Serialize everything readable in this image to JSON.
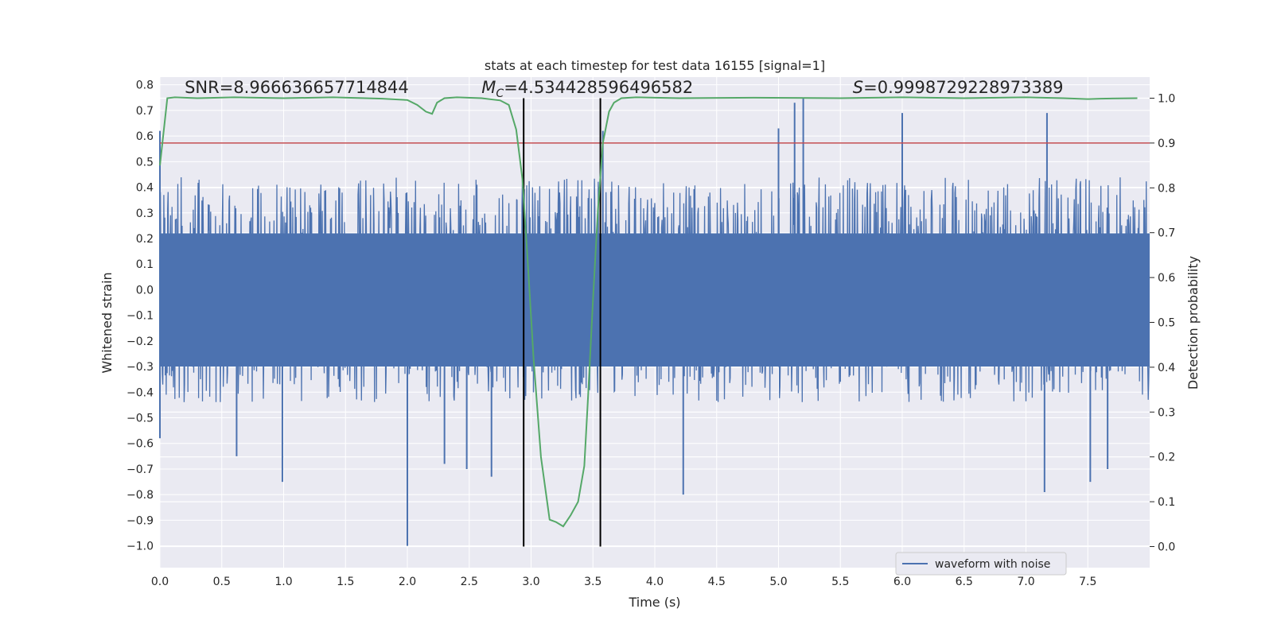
{
  "chart_data": {
    "type": "line",
    "title": "stats at each timestep for test data 16155 [signal=1]",
    "xlabel": "Time (s)",
    "ylabel": "Whitened strain",
    "y2label": "Detection probability",
    "xlim": [
      0.0,
      8.0
    ],
    "ylim": [
      -1.085,
      0.83
    ],
    "y2lim": [
      -0.047,
      1.047
    ],
    "x_ticks": [
      0.0,
      0.5,
      1.0,
      1.5,
      2.0,
      2.5,
      3.0,
      3.5,
      4.0,
      4.5,
      5.0,
      5.5,
      6.0,
      6.5,
      7.0,
      7.5
    ],
    "x_tick_labels": [
      "0.0",
      "0.5",
      "1.0",
      "1.5",
      "2.0",
      "2.5",
      "3.0",
      "3.5",
      "4.0",
      "4.5",
      "5.0",
      "5.5",
      "6.0",
      "6.5",
      "7.0",
      "7.5"
    ],
    "y_ticks": [
      0.8,
      0.7,
      0.6,
      0.5,
      0.4,
      0.3,
      0.2,
      0.1,
      0.0,
      -0.1,
      -0.2,
      -0.3,
      -0.4,
      -0.5,
      -0.6,
      -0.7,
      -0.8,
      -0.9,
      -1.0
    ],
    "y_tick_labels": [
      "0.8",
      "0.7",
      "0.6",
      "0.5",
      "0.4",
      "0.3",
      "0.2",
      "0.1",
      "0.0",
      "−0.1",
      "−0.2",
      "−0.3",
      "−0.4",
      "−0.5",
      "−0.6",
      "−0.7",
      "−0.8",
      "−0.9",
      "−1.0"
    ],
    "y2_ticks": [
      1.0,
      0.9,
      0.8,
      0.7,
      0.6,
      0.5,
      0.4,
      0.3,
      0.2,
      0.1,
      0.0
    ],
    "y2_tick_labels": [
      "1.0",
      "0.9",
      "0.8",
      "0.7",
      "0.6",
      "0.5",
      "0.4",
      "0.3",
      "0.2",
      "0.1",
      "0.0"
    ],
    "grid": true,
    "legend": {
      "placement": "lower-right",
      "entries": [
        "waveform with noise"
      ]
    },
    "colors": {
      "background": "#eaeaf2",
      "grid": "#ffffff",
      "waveform": "#4c72b0",
      "probability": "#55a868",
      "threshold": "#c44e52",
      "markers": "#000000",
      "text": "#262626"
    },
    "annotations": [
      {
        "id": "snr",
        "text": "SNR=8.966636657714844",
        "x": 0.2,
        "y2": 1.01
      },
      {
        "id": "mc",
        "prefix": "M",
        "sub": "C",
        "text": "=4.534428596496582",
        "x": 2.6,
        "y2": 1.01
      },
      {
        "id": "s",
        "prefix": "S",
        "text": "=0.9998729228973389",
        "x": 5.6,
        "y2": 1.01
      }
    ],
    "threshold": {
      "y2": 0.9
    },
    "vertical_markers": [
      {
        "x": 2.94,
        "y2_range": [
          0.0,
          1.0
        ]
      },
      {
        "x": 3.56,
        "y2_range": [
          0.0,
          1.0
        ]
      }
    ],
    "series": [
      {
        "name": "waveform with noise",
        "axis": "left",
        "kind": "noise",
        "x_range": [
          0.0,
          8.0
        ],
        "sample_count": 2048,
        "typical_peak_upper": 0.42,
        "typical_peak_lower": -0.42,
        "notable_spikes": [
          {
            "x": 0.0,
            "y": 0.62
          },
          {
            "x": 0.0,
            "y": -0.58
          },
          {
            "x": 0.99,
            "y": -0.75
          },
          {
            "x": 2.0,
            "y": -1.0
          },
          {
            "x": 2.0,
            "y": -0.82
          },
          {
            "x": 3.58,
            "y": 0.62
          },
          {
            "x": 4.23,
            "y": -0.8
          },
          {
            "x": 5.2,
            "y": 0.75
          },
          {
            "x": 5.13,
            "y": 0.73
          },
          {
            "x": 5.0,
            "y": 0.63
          },
          {
            "x": 6.0,
            "y": 0.69
          },
          {
            "x": 7.15,
            "y": -0.79
          },
          {
            "x": 7.17,
            "y": 0.69
          },
          {
            "x": 7.52,
            "y": -0.75
          },
          {
            "x": 7.66,
            "y": -0.7
          },
          {
            "x": 0.62,
            "y": -0.65
          },
          {
            "x": 2.3,
            "y": -0.68
          },
          {
            "x": 2.48,
            "y": -0.7
          },
          {
            "x": 2.68,
            "y": -0.73
          }
        ]
      },
      {
        "name": "",
        "axis": "right",
        "kind": "line",
        "x": [
          0.0,
          0.06,
          0.12,
          0.3,
          0.6,
          1.0,
          1.4,
          1.8,
          2.0,
          2.08,
          2.15,
          2.2,
          2.24,
          2.3,
          2.4,
          2.6,
          2.75,
          2.82,
          2.88,
          2.93,
          2.97,
          3.02,
          3.08,
          3.15,
          3.2,
          3.26,
          3.32,
          3.38,
          3.43,
          3.46,
          3.5,
          3.54,
          3.58,
          3.63,
          3.67,
          3.73,
          3.85,
          4.2,
          4.8,
          5.5,
          6.0,
          6.5,
          7.0,
          7.3,
          7.5,
          7.6,
          7.9
        ],
        "y": [
          0.85,
          1.0,
          1.002,
          1.0,
          1.002,
          1.0,
          1.002,
          0.999,
          0.996,
          0.985,
          0.97,
          0.965,
          0.99,
          1.0,
          1.002,
          1.0,
          0.995,
          0.985,
          0.93,
          0.82,
          0.65,
          0.42,
          0.2,
          0.06,
          0.055,
          0.045,
          0.07,
          0.1,
          0.18,
          0.33,
          0.55,
          0.75,
          0.9,
          0.97,
          0.99,
          1.0,
          1.002,
          1.0,
          1.001,
          1.0,
          1.002,
          1.0,
          1.002,
          1.0,
          0.998,
          0.999,
          1.0
        ]
      }
    ]
  }
}
